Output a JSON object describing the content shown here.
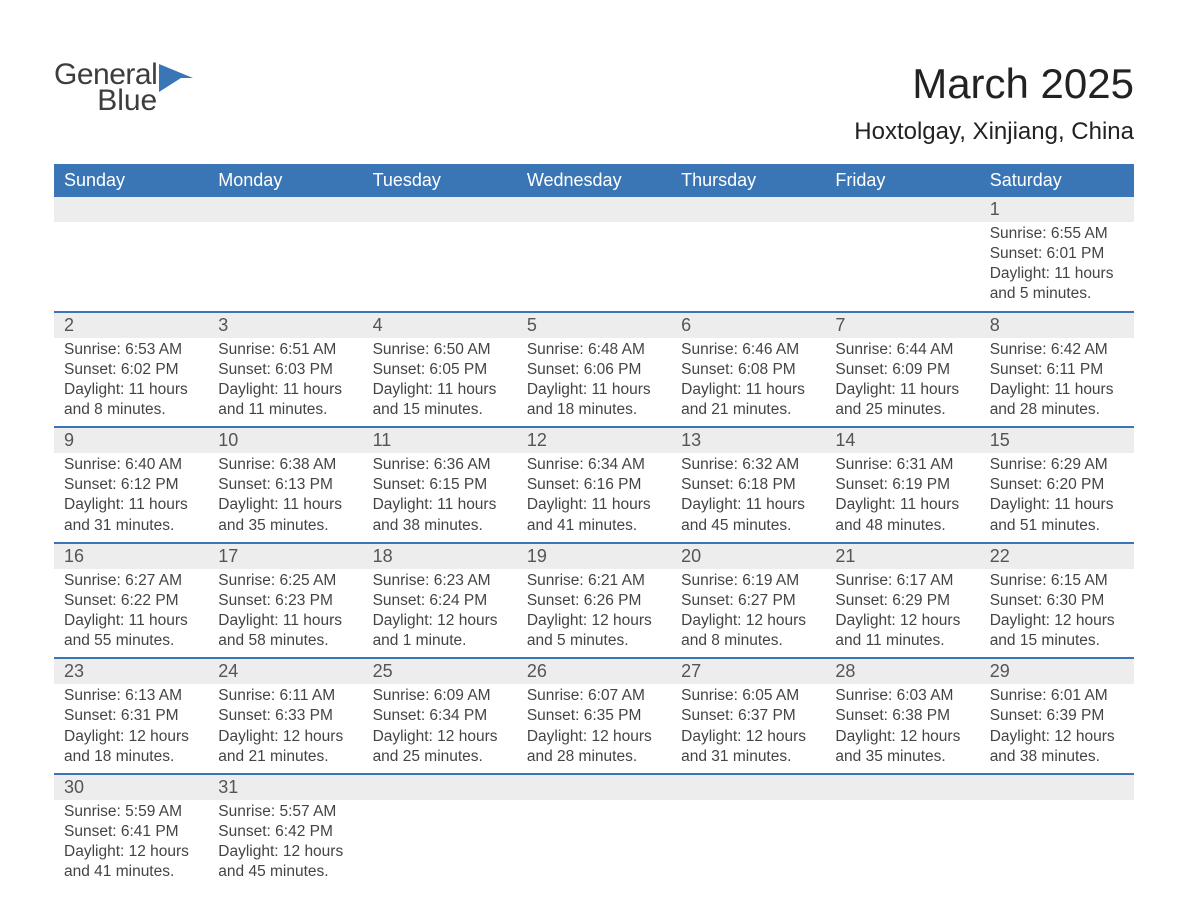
{
  "logo": {
    "line1": "General",
    "line2": "Blue"
  },
  "title": {
    "month": "March 2025",
    "location": "Hoxtolgay, Xinjiang, China"
  },
  "colors": {
    "header_bg": "#3a76b6",
    "header_fg": "#ffffff",
    "daynum_bg": "#ededed",
    "row_divider": "#3a76b6",
    "text": "#3b3b3b",
    "logo_mark": "#3a76b6"
  },
  "weekdays": [
    "Sunday",
    "Monday",
    "Tuesday",
    "Wednesday",
    "Thursday",
    "Friday",
    "Saturday"
  ],
  "weeks": [
    [
      null,
      null,
      null,
      null,
      null,
      null,
      {
        "n": "1",
        "sr": "6:55 AM",
        "ss": "6:01 PM",
        "dl": "11 hours and 5 minutes."
      }
    ],
    [
      {
        "n": "2",
        "sr": "6:53 AM",
        "ss": "6:02 PM",
        "dl": "11 hours and 8 minutes."
      },
      {
        "n": "3",
        "sr": "6:51 AM",
        "ss": "6:03 PM",
        "dl": "11 hours and 11 minutes."
      },
      {
        "n": "4",
        "sr": "6:50 AM",
        "ss": "6:05 PM",
        "dl": "11 hours and 15 minutes."
      },
      {
        "n": "5",
        "sr": "6:48 AM",
        "ss": "6:06 PM",
        "dl": "11 hours and 18 minutes."
      },
      {
        "n": "6",
        "sr": "6:46 AM",
        "ss": "6:08 PM",
        "dl": "11 hours and 21 minutes."
      },
      {
        "n": "7",
        "sr": "6:44 AM",
        "ss": "6:09 PM",
        "dl": "11 hours and 25 minutes."
      },
      {
        "n": "8",
        "sr": "6:42 AM",
        "ss": "6:11 PM",
        "dl": "11 hours and 28 minutes."
      }
    ],
    [
      {
        "n": "9",
        "sr": "6:40 AM",
        "ss": "6:12 PM",
        "dl": "11 hours and 31 minutes."
      },
      {
        "n": "10",
        "sr": "6:38 AM",
        "ss": "6:13 PM",
        "dl": "11 hours and 35 minutes."
      },
      {
        "n": "11",
        "sr": "6:36 AM",
        "ss": "6:15 PM",
        "dl": "11 hours and 38 minutes."
      },
      {
        "n": "12",
        "sr": "6:34 AM",
        "ss": "6:16 PM",
        "dl": "11 hours and 41 minutes."
      },
      {
        "n": "13",
        "sr": "6:32 AM",
        "ss": "6:18 PM",
        "dl": "11 hours and 45 minutes."
      },
      {
        "n": "14",
        "sr": "6:31 AM",
        "ss": "6:19 PM",
        "dl": "11 hours and 48 minutes."
      },
      {
        "n": "15",
        "sr": "6:29 AM",
        "ss": "6:20 PM",
        "dl": "11 hours and 51 minutes."
      }
    ],
    [
      {
        "n": "16",
        "sr": "6:27 AM",
        "ss": "6:22 PM",
        "dl": "11 hours and 55 minutes."
      },
      {
        "n": "17",
        "sr": "6:25 AM",
        "ss": "6:23 PM",
        "dl": "11 hours and 58 minutes."
      },
      {
        "n": "18",
        "sr": "6:23 AM",
        "ss": "6:24 PM",
        "dl": "12 hours and 1 minute."
      },
      {
        "n": "19",
        "sr": "6:21 AM",
        "ss": "6:26 PM",
        "dl": "12 hours and 5 minutes."
      },
      {
        "n": "20",
        "sr": "6:19 AM",
        "ss": "6:27 PM",
        "dl": "12 hours and 8 minutes."
      },
      {
        "n": "21",
        "sr": "6:17 AM",
        "ss": "6:29 PM",
        "dl": "12 hours and 11 minutes."
      },
      {
        "n": "22",
        "sr": "6:15 AM",
        "ss": "6:30 PM",
        "dl": "12 hours and 15 minutes."
      }
    ],
    [
      {
        "n": "23",
        "sr": "6:13 AM",
        "ss": "6:31 PM",
        "dl": "12 hours and 18 minutes."
      },
      {
        "n": "24",
        "sr": "6:11 AM",
        "ss": "6:33 PM",
        "dl": "12 hours and 21 minutes."
      },
      {
        "n": "25",
        "sr": "6:09 AM",
        "ss": "6:34 PM",
        "dl": "12 hours and 25 minutes."
      },
      {
        "n": "26",
        "sr": "6:07 AM",
        "ss": "6:35 PM",
        "dl": "12 hours and 28 minutes."
      },
      {
        "n": "27",
        "sr": "6:05 AM",
        "ss": "6:37 PM",
        "dl": "12 hours and 31 minutes."
      },
      {
        "n": "28",
        "sr": "6:03 AM",
        "ss": "6:38 PM",
        "dl": "12 hours and 35 minutes."
      },
      {
        "n": "29",
        "sr": "6:01 AM",
        "ss": "6:39 PM",
        "dl": "12 hours and 38 minutes."
      }
    ],
    [
      {
        "n": "30",
        "sr": "5:59 AM",
        "ss": "6:41 PM",
        "dl": "12 hours and 41 minutes."
      },
      {
        "n": "31",
        "sr": "5:57 AM",
        "ss": "6:42 PM",
        "dl": "12 hours and 45 minutes."
      },
      null,
      null,
      null,
      null,
      null
    ]
  ],
  "labels": {
    "sunrise": "Sunrise: ",
    "sunset": "Sunset: ",
    "daylight": "Daylight: "
  }
}
